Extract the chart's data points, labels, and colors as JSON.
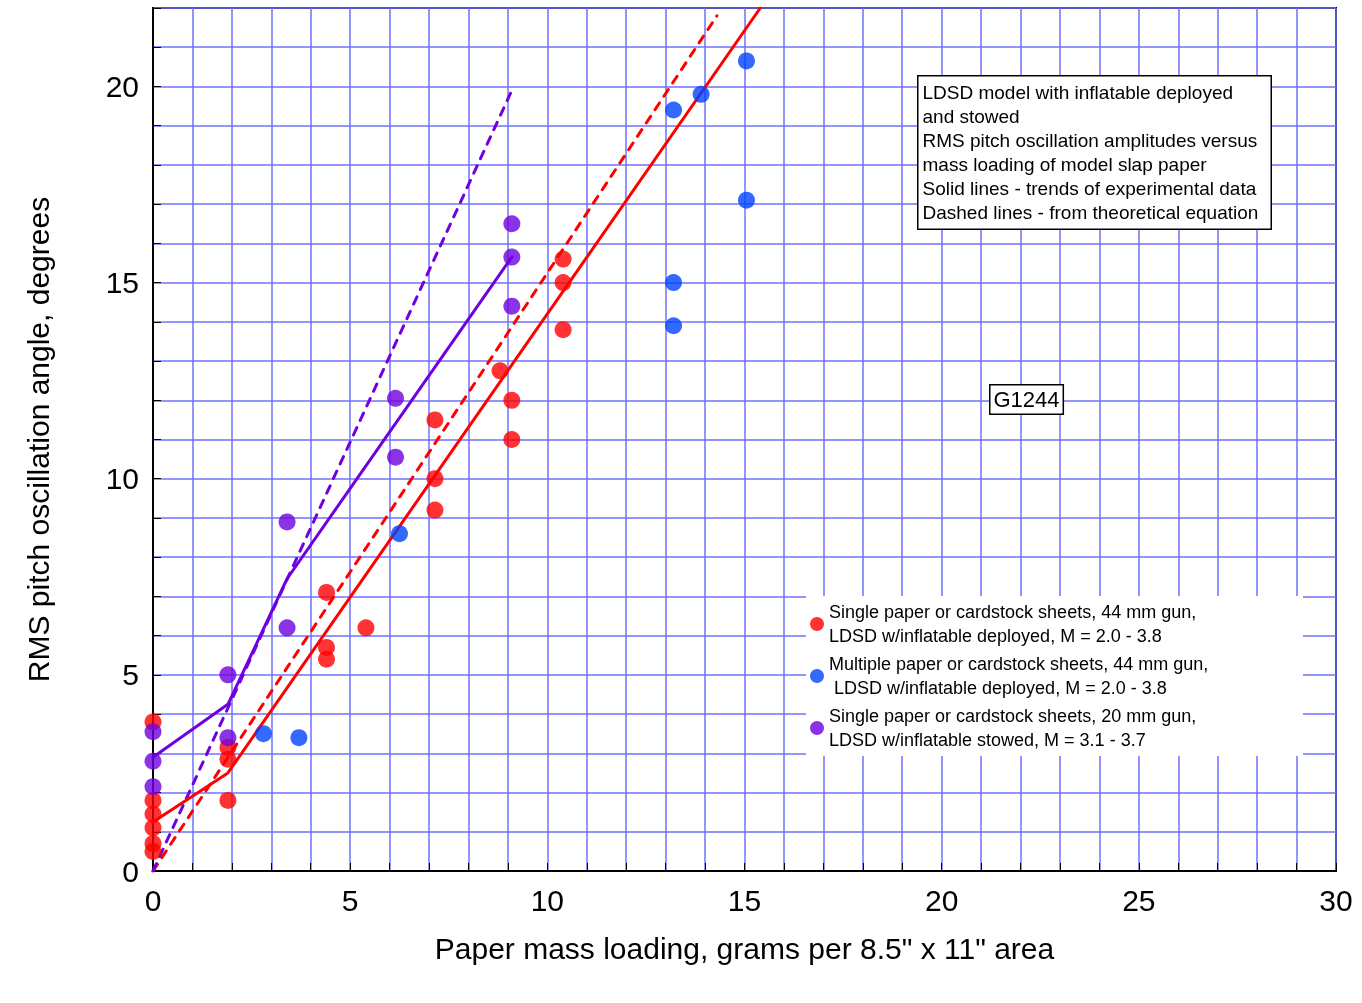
{
  "chart_data": {
    "type": "scatter",
    "xlabel": "Paper mass loading, grams per 8.5\" x 11\" area",
    "ylabel": "RMS pitch oscillation angle, degrees",
    "xlim": [
      0,
      30
    ],
    "ylim": [
      0,
      22
    ],
    "xticks": [
      0,
      {
        "value": 1,
        "label": null
      },
      {
        "value": 2,
        "label": null
      },
      {
        "value": 3,
        "label": null
      },
      {
        "value": 4,
        "label": null
      },
      5,
      {
        "value": 6,
        "label": null
      },
      {
        "value": 7,
        "label": null
      },
      {
        "value": 8,
        "label": null
      },
      {
        "value": 9,
        "label": null
      },
      10,
      {
        "value": 11,
        "label": null
      },
      {
        "value": 12,
        "label": null
      },
      {
        "value": 13,
        "label": null
      },
      {
        "value": 14,
        "label": null
      },
      15,
      {
        "value": 16,
        "label": null
      },
      {
        "value": 17,
        "label": null
      },
      {
        "value": 18,
        "label": null
      },
      {
        "value": 19,
        "label": null
      },
      20,
      {
        "value": 21,
        "label": null
      },
      {
        "value": 22,
        "label": null
      },
      {
        "value": 23,
        "label": null
      },
      {
        "value": 24,
        "label": null
      },
      25,
      {
        "value": 26,
        "label": null
      },
      {
        "value": 27,
        "label": null
      },
      {
        "value": 28,
        "label": null
      },
      {
        "value": 29,
        "label": null
      },
      30
    ],
    "yticks": [
      0,
      {
        "value": 1,
        "label": null
      },
      {
        "value": 2,
        "label": null
      },
      {
        "value": 3,
        "label": null
      },
      {
        "value": 4,
        "label": null
      },
      5,
      {
        "value": 6,
        "label": null
      },
      {
        "value": 7,
        "label": null
      },
      {
        "value": 8,
        "label": null
      },
      {
        "value": 9,
        "label": null
      },
      10,
      {
        "value": 11,
        "label": null
      },
      {
        "value": 12,
        "label": null
      },
      {
        "value": 13,
        "label": null
      },
      {
        "value": 14,
        "label": null
      },
      15,
      {
        "value": 16,
        "label": null
      },
      {
        "value": 17,
        "label": null
      },
      {
        "value": 18,
        "label": null
      },
      {
        "value": 19,
        "label": null
      },
      20,
      {
        "value": 21,
        "label": null
      },
      {
        "value": 22,
        "label": null
      }
    ],
    "grid": true,
    "legend": "bottom right",
    "marker": "circle",
    "series": [
      {
        "type": "line",
        "marker": "none",
        "color": "#ff0000",
        "line_style": "dashed",
        "x": [
          0,
          14.3
        ],
        "values": [
          0,
          21.8
        ]
      },
      {
        "type": "line",
        "marker": "none",
        "color": "#7000e0",
        "line_style": "dashed",
        "x": [
          0,
          9.1
        ],
        "values": [
          0,
          19.9
        ]
      },
      {
        "type": "line",
        "marker": "none",
        "color": "#ff0000",
        "line_style": "solid",
        "x": [
          0,
          1.9,
          15.4
        ],
        "values": [
          1.25,
          2.5,
          22
        ]
      },
      {
        "type": "line",
        "marker": "none",
        "color": "#7000e0",
        "line_style": "solid",
        "x": [
          0,
          1.9,
          3.4,
          9.1
        ],
        "values": [
          2.9,
          4.25,
          7.45,
          15.65
        ]
      },
      {
        "name": "Single paper or cardstock sheets, 44 mm gun, LDSD w/inflatable deployed, M = 2.0 - 3.8",
        "color": "#ff0000",
        "x": [
          0,
          0,
          0,
          0,
          0,
          0,
          1.9,
          1.9,
          1.9,
          4.4,
          4.4,
          4.4,
          5.4,
          7.15,
          7.15,
          7.15,
          8.8,
          9.1,
          9.1,
          10.4,
          10.4,
          10.4
        ],
        "values": [
          3.8,
          1.8,
          1.45,
          1.1,
          0.7,
          0.5,
          3.15,
          2.85,
          1.8,
          7.1,
          5.7,
          5.4,
          6.2,
          11.5,
          10.0,
          9.2,
          12.75,
          12.0,
          11.0,
          15.6,
          15.0,
          13.8
        ]
      },
      {
        "name": "Multiple paper or cardstock sheets, 44 mm gun, LDSD w/inflatable deployed, M = 2.0 - 3.8",
        "color": "#0044ff",
        "x": [
          2.8,
          3.7,
          6.25,
          13.2,
          13.2,
          13.2,
          13.9,
          15.05,
          15.05
        ],
        "values": [
          3.5,
          3.4,
          8.6,
          19.4,
          15.0,
          13.9,
          19.8,
          20.65,
          17.1
        ]
      },
      {
        "name": "Single paper or cardstock sheets, 20 mm gun, LDSD w/inflatable stowed, M = 3.1 - 3.7",
        "color": "#7000e0",
        "x": [
          0,
          0,
          0,
          1.9,
          1.9,
          3.4,
          3.4,
          6.15,
          6.15,
          9.1,
          9.1,
          9.1
        ],
        "values": [
          3.55,
          2.8,
          2.15,
          5.0,
          3.4,
          8.9,
          6.2,
          12.05,
          10.55,
          16.5,
          15.65,
          14.4
        ]
      }
    ],
    "annotations": [
      "LDSD model with inflatable deployed and stowed",
      "RMS pitch oscillation amplitudes versus mass loading of model slap paper",
      "Solid lines - trends of experimental data",
      "Dashed lines - from theoretical equation",
      "G1244"
    ]
  }
}
